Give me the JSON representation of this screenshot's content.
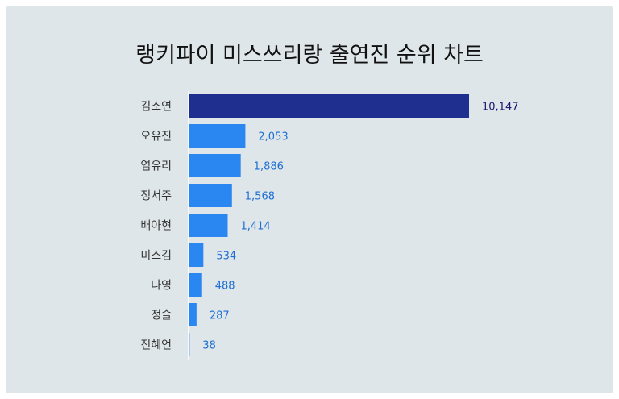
{
  "chart_data": {
    "type": "bar",
    "orientation": "horizontal",
    "title": "랭키파이 미스쓰리랑 출연진 순위 차트",
    "categories": [
      "김소연",
      "오유진",
      "염유리",
      "정서주",
      "배아현",
      "미스김",
      "나영",
      "정슬",
      "진혜언"
    ],
    "values": [
      10147,
      2053,
      1886,
      1568,
      1414,
      534,
      488,
      287,
      38
    ],
    "value_labels": [
      "10,147",
      "2,053",
      "1,886",
      "1,568",
      "1,414",
      "534",
      "488",
      "287",
      "38"
    ],
    "xlim": [
      0,
      10147
    ],
    "grid": false,
    "legend": "none",
    "colors": {
      "highlight": "#1f2f8f",
      "bar": "#2a86f0",
      "highlight_label": "#1a1a6e",
      "bar_label": "#1f6fd1"
    }
  }
}
